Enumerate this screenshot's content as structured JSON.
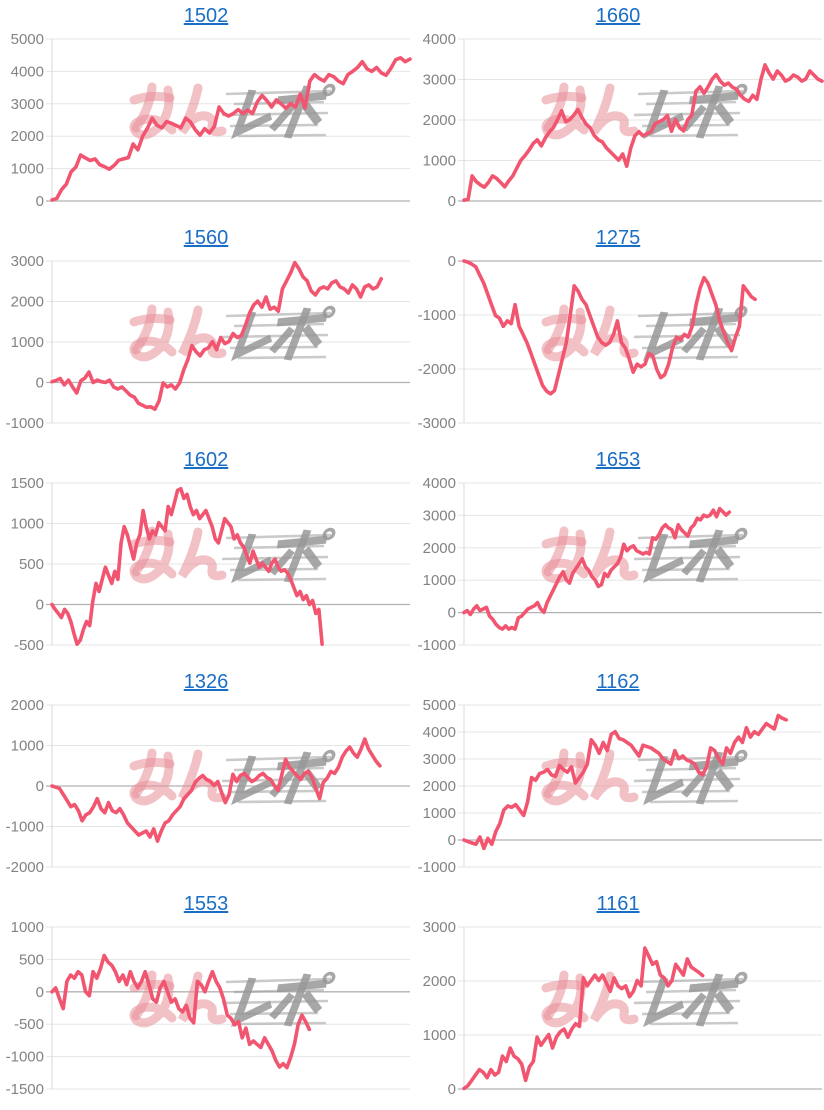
{
  "page": {
    "background": "#ffffff",
    "link_color": "#1a6ec6",
    "line_color": "#f25570",
    "grid_color": "#e5e5e5",
    "zero_line_color": "#b2b2b2",
    "tick_label_color": "#838383"
  },
  "watermark": {
    "pink_text": "みん",
    "gray_text": "レポ",
    "pink_color": "rgba(232,142,152,0.55)",
    "gray_color": "rgba(152,152,152,0.85)"
  },
  "chart_data": [
    {
      "type": "line",
      "title": "1502",
      "ylim": [
        0,
        5000
      ],
      "yticks": [
        0,
        1000,
        2000,
        3000,
        4000,
        5000
      ],
      "x_slots": 76,
      "values": [
        30,
        80,
        350,
        520,
        900,
        1050,
        1420,
        1330,
        1250,
        1300,
        1120,
        1060,
        980,
        1100,
        1260,
        1300,
        1340,
        1760,
        1580,
        2000,
        2250,
        2560,
        2340,
        2260,
        2450,
        2400,
        2330,
        2260,
        2560,
        2440,
        2200,
        2030,
        2230,
        2100,
        2300,
        2900,
        2700,
        2620,
        2700,
        2820,
        2700,
        2810,
        2700,
        3060,
        3260,
        3100,
        2900,
        3120,
        3000,
        2860,
        3010,
        2900,
        3300,
        2870,
        3700,
        3900,
        3780,
        3700,
        3900,
        3840,
        3700,
        3620,
        3900,
        4000,
        4120,
        4300,
        4080,
        4000,
        4120,
        3950,
        3880,
        4100,
        4360,
        4420,
        4300,
        4380
      ]
    },
    {
      "type": "line",
      "title": "1660",
      "ylim": [
        0,
        4000
      ],
      "yticks": [
        0,
        1000,
        2000,
        3000,
        4000
      ],
      "x_slots": 89,
      "values": [
        20,
        40,
        620,
        480,
        400,
        340,
        460,
        620,
        560,
        460,
        350,
        500,
        620,
        820,
        1010,
        1120,
        1260,
        1420,
        1510,
        1360,
        1560,
        1700,
        1820,
        2010,
        2230,
        1960,
        2010,
        2120,
        2260,
        2060,
        1900,
        1810,
        1620,
        1510,
        1460,
        1310,
        1210,
        1110,
        1010,
        1160,
        860,
        1310,
        1610,
        1710,
        1610,
        1660,
        1710,
        1910,
        1960,
        2010,
        2110,
        1720,
        2010,
        1810,
        1730,
        2010,
        2120,
        2710,
        2820,
        2660,
        2820,
        3010,
        3120,
        2960,
        2860,
        2910,
        2810,
        2760,
        2610,
        2510,
        2460,
        2610,
        2510,
        3010,
        3360,
        3160,
        3010,
        3210,
        3110,
        2960,
        3010,
        3110,
        3060,
        2960,
        3010,
        3210,
        3110,
        3010,
        2960
      ]
    },
    {
      "type": "line",
      "title": "1560",
      "ylim": [
        -1000,
        3000
      ],
      "yticks": [
        -1000,
        0,
        1000,
        2000,
        3000
      ],
      "x_slots": 88,
      "values": [
        20,
        50,
        100,
        -60,
        60,
        -110,
        -260,
        40,
        110,
        260,
        0,
        60,
        20,
        0,
        60,
        -110,
        -160,
        -110,
        -210,
        -310,
        -360,
        -510,
        -560,
        -610,
        -600,
        -660,
        -460,
        -10,
        -110,
        -60,
        -160,
        -10,
        310,
        560,
        910,
        760,
        660,
        810,
        860,
        1010,
        810,
        1110,
        960,
        1010,
        1210,
        1110,
        1160,
        1410,
        1710,
        1910,
        2010,
        1860,
        2110,
        1810,
        1860,
        1760,
        2310,
        2510,
        2710,
        2960,
        2810,
        2610,
        2510,
        2260,
        2160,
        2310,
        2360,
        2310,
        2460,
        2510,
        2360,
        2310,
        2210,
        2410,
        2310,
        2110,
        2360,
        2410,
        2310,
        2360,
        2560
      ]
    },
    {
      "type": "line",
      "title": "1275",
      "ylim": [
        -3000,
        0
      ],
      "yticks": [
        0,
        -1000,
        -2000,
        -3000
      ],
      "x_slots": 92,
      "values": [
        0,
        -20,
        -60,
        -110,
        -260,
        -410,
        -610,
        -810,
        -1010,
        -1060,
        -1210,
        -1110,
        -1160,
        -810,
        -1210,
        -1360,
        -1510,
        -1710,
        -1910,
        -2110,
        -2310,
        -2410,
        -2460,
        -2400,
        -2110,
        -1810,
        -1510,
        -1010,
        -460,
        -560,
        -710,
        -810,
        -1010,
        -1210,
        -1410,
        -1510,
        -1560,
        -1510,
        -1360,
        -1110,
        -1510,
        -1610,
        -1810,
        -2060,
        -1910,
        -1960,
        -1910,
        -1710,
        -1760,
        -2010,
        -2160,
        -2110,
        -1910,
        -1610,
        -1410,
        -1460,
        -1360,
        -1410,
        -1210,
        -810,
        -510,
        -310,
        -410,
        -610,
        -810,
        -1110,
        -1310,
        -1510,
        -1660,
        -1410,
        -1210,
        -460,
        -560,
        -660,
        -710
      ]
    },
    {
      "type": "line",
      "title": "1602",
      "ylim": [
        -500,
        1500
      ],
      "yticks": [
        -500,
        0,
        500,
        1000,
        1500
      ],
      "x_slots": 115,
      "values": [
        0,
        -60,
        -110,
        -160,
        -60,
        -110,
        -210,
        -360,
        -490,
        -440,
        -310,
        -210,
        -260,
        40,
        260,
        160,
        310,
        460,
        360,
        260,
        410,
        310,
        760,
        960,
        860,
        710,
        560,
        760,
        860,
        1160,
        960,
        810,
        910,
        860,
        1010,
        960,
        910,
        1210,
        1110,
        1260,
        1410,
        1430,
        1310,
        1360,
        1210,
        1110,
        1160,
        1060,
        1110,
        1160,
        1060,
        960,
        810,
        760,
        910,
        1060,
        1010,
        960,
        810,
        860,
        760,
        710,
        610,
        510,
        660,
        560,
        460,
        510,
        460,
        410,
        510,
        560,
        460,
        410,
        430,
        390,
        310,
        210,
        110,
        160,
        60,
        110,
        0,
        50,
        -110,
        -60,
        -490
      ]
    },
    {
      "type": "line",
      "title": "1653",
      "ylim": [
        -1000,
        4000
      ],
      "yticks": [
        -1000,
        0,
        1000,
        2000,
        3000,
        4000
      ],
      "x_slots": 113,
      "values": [
        0,
        60,
        -60,
        110,
        210,
        60,
        110,
        160,
        -110,
        -210,
        -360,
        -460,
        -510,
        -410,
        -510,
        -460,
        -510,
        -160,
        -110,
        0,
        110,
        160,
        210,
        310,
        110,
        10,
        310,
        510,
        710,
        910,
        1110,
        1260,
        1010,
        910,
        1210,
        1360,
        1510,
        1660,
        1410,
        1310,
        1110,
        1010,
        810,
        860,
        1210,
        1110,
        1310,
        1410,
        1510,
        1710,
        2110,
        1910,
        2010,
        2060,
        1910,
        1860,
        1810,
        1860,
        1810,
        2310,
        2260,
        2410,
        2610,
        2710,
        2610,
        2560,
        2310,
        2710,
        2560,
        2460,
        2360,
        2610,
        2710,
        2910,
        2860,
        3010,
        2960,
        3010,
        3160,
        2960,
        3210,
        3110,
        3010,
        3100
      ]
    },
    {
      "type": "line",
      "title": "1326",
      "ylim": [
        -2000,
        2000
      ],
      "yticks": [
        -2000,
        -1000,
        0,
        1000,
        2000
      ],
      "x_slots": 96,
      "values": [
        0,
        -30,
        -60,
        -210,
        -360,
        -510,
        -460,
        -610,
        -860,
        -710,
        -660,
        -510,
        -310,
        -560,
        -660,
        -410,
        -610,
        -660,
        -560,
        -710,
        -910,
        -1010,
        -1110,
        -1210,
        -1160,
        -1110,
        -1260,
        -1060,
        -1360,
        -1110,
        -910,
        -860,
        -710,
        -610,
        -510,
        -310,
        -210,
        -110,
        90,
        190,
        260,
        160,
        110,
        10,
        110,
        -160,
        -410,
        -210,
        290,
        110,
        260,
        310,
        210,
        110,
        160,
        260,
        310,
        210,
        160,
        10,
        -110,
        290,
        660,
        460,
        360,
        260,
        160,
        310,
        360,
        210,
        -60,
        -310,
        90,
        190,
        360,
        310,
        460,
        710,
        860,
        960,
        810,
        710,
        910,
        1160,
        910,
        760,
        610,
        500
      ]
    },
    {
      "type": "line",
      "title": "1162",
      "ylim": [
        -1000,
        5000
      ],
      "yticks": [
        -1000,
        0,
        1000,
        2000,
        3000,
        4000,
        5000
      ],
      "x_slots": 91,
      "values": [
        0,
        -60,
        -110,
        -160,
        110,
        -310,
        60,
        -160,
        310,
        610,
        1110,
        1260,
        1210,
        1310,
        1110,
        910,
        1410,
        2310,
        2210,
        2460,
        2510,
        2610,
        2410,
        2360,
        2760,
        2610,
        2510,
        2710,
        2110,
        2310,
        2510,
        2810,
        3710,
        3510,
        3210,
        3610,
        3310,
        3910,
        4010,
        3760,
        3710,
        3610,
        3510,
        3310,
        3110,
        3510,
        3460,
        3410,
        3310,
        3210,
        3010,
        2910,
        2810,
        3310,
        3010,
        3110,
        2960,
        2910,
        2810,
        2510,
        2410,
        2710,
        3410,
        3310,
        3010,
        2810,
        3410,
        3210,
        3610,
        3810,
        3610,
        4160,
        3810,
        4010,
        3910,
        4110,
        4310,
        4210,
        4110,
        4610,
        4510,
        4450
      ]
    },
    {
      "type": "line",
      "title": "1553",
      "ylim": [
        -1500,
        1000
      ],
      "yticks": [
        -1500,
        -1000,
        -500,
        0,
        500,
        1000
      ],
      "x_slots": 97,
      "values": [
        0,
        60,
        -110,
        -260,
        160,
        260,
        210,
        310,
        260,
        0,
        -60,
        310,
        210,
        360,
        560,
        460,
        410,
        310,
        160,
        260,
        110,
        310,
        160,
        60,
        160,
        310,
        110,
        -110,
        -160,
        60,
        160,
        0,
        -160,
        -110,
        -260,
        -310,
        -210,
        -410,
        -480,
        160,
        110,
        0,
        160,
        310,
        160,
        60,
        -110,
        -360,
        -410,
        -510,
        -460,
        -710,
        -560,
        -810,
        -760,
        -810,
        -860,
        -710,
        -810,
        -910,
        -1060,
        -1160,
        -1110,
        -1170,
        -1010,
        -810,
        -510,
        -360,
        -460,
        -580
      ]
    },
    {
      "type": "line",
      "title": "1161",
      "ylim": [
        0,
        3000
      ],
      "yticks": [
        0,
        1000,
        2000,
        3000
      ],
      "x_slots": 94,
      "values": [
        10,
        60,
        160,
        260,
        360,
        310,
        210,
        360,
        260,
        310,
        610,
        510,
        760,
        610,
        560,
        460,
        160,
        410,
        510,
        960,
        810,
        910,
        1010,
        760,
        960,
        1060,
        1110,
        960,
        1110,
        1210,
        1160,
        2060,
        1910,
        2010,
        2110,
        2010,
        2110,
        1960,
        1810,
        2060,
        1910,
        1860,
        1910,
        1710,
        1810,
        2010,
        1910,
        2610,
        2460,
        2310,
        2360,
        2110,
        2060,
        1910,
        2010,
        2310,
        2210,
        2110,
        2410,
        2260,
        2210,
        2160,
        2100
      ]
    }
  ]
}
